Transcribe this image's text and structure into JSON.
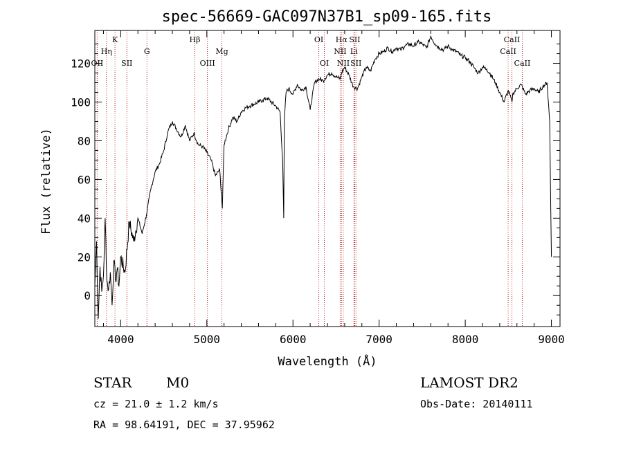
{
  "chart_data": {
    "type": "line",
    "title": "spec-56669-GAC097N37B1_sp09-165.fits",
    "xlabel": "Wavelength (Å)",
    "ylabel": "Flux (relative)",
    "xlim": [
      3700,
      9100
    ],
    "ylim": [
      -16,
      137
    ],
    "xticks": [
      4000,
      5000,
      6000,
      7000,
      8000,
      9000
    ],
    "yticks": [
      0,
      20,
      40,
      60,
      80,
      100,
      120
    ],
    "grid": false,
    "series": [
      {
        "x": [
          3700,
          3720,
          3740,
          3760,
          3780,
          3800,
          3820,
          3840,
          3860,
          3880,
          3900,
          3920,
          3940,
          3960,
          3980,
          4000,
          4050,
          4100,
          4150,
          4200,
          4250,
          4300,
          4350,
          4400,
          4450,
          4500,
          4550,
          4600,
          4650,
          4700,
          4750,
          4800,
          4850,
          4900,
          4950,
          5000,
          5050,
          5100,
          5150,
          5180,
          5200,
          5250,
          5300,
          5350,
          5400,
          5450,
          5500,
          5550,
          5600,
          5650,
          5700,
          5750,
          5800,
          5850,
          5880,
          5893,
          5900,
          5920,
          5950,
          6000,
          6050,
          6100,
          6150,
          6200,
          6250,
          6300,
          6350,
          6400,
          6450,
          6500,
          6550,
          6563,
          6600,
          6650,
          6700,
          6750,
          6800,
          6850,
          6900,
          6950,
          7000,
          7050,
          7100,
          7150,
          7200,
          7250,
          7300,
          7350,
          7400,
          7450,
          7500,
          7550,
          7600,
          7650,
          7700,
          7750,
          7800,
          7850,
          7900,
          7950,
          8000,
          8050,
          8100,
          8150,
          8200,
          8250,
          8300,
          8350,
          8400,
          8450,
          8500,
          8542,
          8550,
          8600,
          8650,
          8700,
          8750,
          8800,
          8850,
          8900,
          8950,
          8980,
          9000
        ],
        "y": [
          5,
          28,
          -12,
          15,
          2,
          10,
          40,
          8,
          3,
          12,
          -5,
          18,
          8,
          14,
          5,
          20,
          12,
          38,
          28,
          40,
          32,
          42,
          55,
          64,
          68,
          75,
          85,
          90,
          86,
          82,
          88,
          80,
          84,
          78,
          77,
          74,
          70,
          62,
          65,
          45,
          78,
          86,
          92,
          90,
          95,
          97,
          98,
          99,
          100,
          101,
          102,
          100,
          98,
          95,
          70,
          40,
          90,
          105,
          107,
          104,
          109,
          106,
          108,
          96,
          110,
          112,
          111,
          114,
          115,
          113,
          112,
          115,
          118,
          114,
          108,
          107,
          113,
          118,
          116,
          122,
          125,
          126,
          128,
          126,
          128,
          127,
          129,
          130,
          129,
          131,
          130,
          128,
          134,
          130,
          128,
          127,
          129,
          127,
          126,
          124,
          123,
          121,
          118,
          115,
          118,
          117,
          114,
          110,
          105,
          100,
          106,
          100,
          104,
          107,
          109,
          104,
          106,
          107,
          105,
          108,
          110,
          90,
          20
        ]
      }
    ],
    "line_markers": [
      {
        "label": "Hη",
        "wl": 3835,
        "row": 2
      },
      {
        "label": "OII",
        "wl": 3727,
        "row": 3
      },
      {
        "label": "K",
        "wl": 3934,
        "row": 1
      },
      {
        "label": "SII",
        "wl": 4072,
        "row": 3
      },
      {
        "label": "G",
        "wl": 4305,
        "row": 2
      },
      {
        "label": "Hβ",
        "wl": 4861,
        "row": 1
      },
      {
        "label": "OIII",
        "wl": 5007,
        "row": 3
      },
      {
        "label": "Mg",
        "wl": 5175,
        "row": 2
      },
      {
        "label": "OI",
        "wl": 6300,
        "row": 1
      },
      {
        "label": "OI",
        "wl": 6364,
        "row": 3
      },
      {
        "label": "Hα",
        "wl": 6563,
        "row": 1
      },
      {
        "label": "NII",
        "wl": 6548,
        "row": 2
      },
      {
        "label": "NII",
        "wl": 6584,
        "row": 3
      },
      {
        "label": "SII",
        "wl": 6717,
        "row": 1
      },
      {
        "label": "Li",
        "wl": 6708,
        "row": 2
      },
      {
        "label": "SII",
        "wl": 6731,
        "row": 3
      },
      {
        "label": "CaII",
        "wl": 8542,
        "row": 1
      },
      {
        "label": "CaII",
        "wl": 8498,
        "row": 2
      },
      {
        "label": "CaII",
        "wl": 8662,
        "row": 3
      }
    ]
  },
  "info": {
    "object_class": "STAR",
    "subclass": "M0",
    "survey": "LAMOST DR2",
    "redshift": "cz = 21.0 ± 1.2 km/s",
    "obs_date": "Obs-Date: 20140111",
    "coords": "RA =  98.64191, DEC =  37.95962"
  },
  "colors": {
    "spectrum": "#000000",
    "marker_line": "#b22222",
    "axes": "#000000"
  }
}
